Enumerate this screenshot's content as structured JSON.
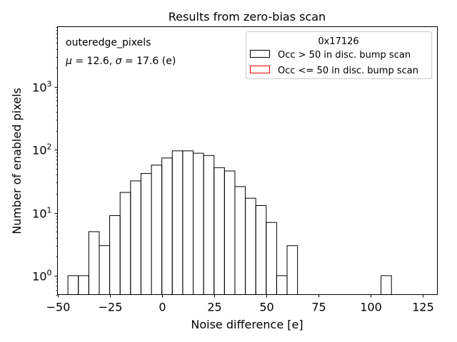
{
  "chart_data": {
    "type": "histogram",
    "title": "Results from zero-bias scan",
    "xlabel": "Noise difference [e]",
    "ylabel": "Number of enabled pixels",
    "y_scale": "log",
    "xlim": [
      -50,
      132
    ],
    "ylim": [
      0.5,
      9000
    ],
    "x_ticks": [
      -50,
      -25,
      0,
      25,
      50,
      75,
      100,
      125
    ],
    "x_tick_labels": [
      "−50",
      "−25",
      "0",
      "25",
      "50",
      "75",
      "100",
      "125"
    ],
    "y_ticks": [
      1,
      10,
      100,
      1000
    ],
    "y_tick_labels": [
      "10",
      "10",
      "10",
      "10"
    ],
    "y_tick_exponents": [
      "0",
      "1",
      "2",
      "3"
    ],
    "annotation_name": "outeredge_pixels",
    "annotation_stats_parts": [
      "μ",
      " = 12.6, ",
      "σ",
      " = 17.6 (e)"
    ],
    "legend": {
      "title": "0x17126",
      "placement": "upper right",
      "entries": [
        {
          "label": "Occ > 50 in disc. bump scan",
          "color": "#000000"
        },
        {
          "label": "Occ <= 50 in disc. bump scan",
          "color": "#ff0000"
        }
      ]
    },
    "bin_width": 5,
    "series": [
      {
        "name": "Occ > 50 in disc. bump scan",
        "color": "#000000",
        "bins": [
          {
            "x0": -45,
            "count": 1
          },
          {
            "x0": -40,
            "count": 1
          },
          {
            "x0": -35,
            "count": 5
          },
          {
            "x0": -30,
            "count": 3
          },
          {
            "x0": -25,
            "count": 9
          },
          {
            "x0": -20,
            "count": 21
          },
          {
            "x0": -15,
            "count": 32
          },
          {
            "x0": -10,
            "count": 42
          },
          {
            "x0": -5,
            "count": 57
          },
          {
            "x0": 0,
            "count": 74
          },
          {
            "x0": 5,
            "count": 96
          },
          {
            "x0": 10,
            "count": 96
          },
          {
            "x0": 15,
            "count": 88
          },
          {
            "x0": 20,
            "count": 81
          },
          {
            "x0": 25,
            "count": 52
          },
          {
            "x0": 30,
            "count": 46
          },
          {
            "x0": 35,
            "count": 26
          },
          {
            "x0": 40,
            "count": 17
          },
          {
            "x0": 45,
            "count": 13
          },
          {
            "x0": 50,
            "count": 7
          },
          {
            "x0": 55,
            "count": 1
          },
          {
            "x0": 60,
            "count": 3
          },
          {
            "x0": 105,
            "count": 1
          }
        ]
      },
      {
        "name": "Occ <= 50 in disc. bump scan",
        "color": "#ff0000",
        "bins": []
      }
    ]
  }
}
